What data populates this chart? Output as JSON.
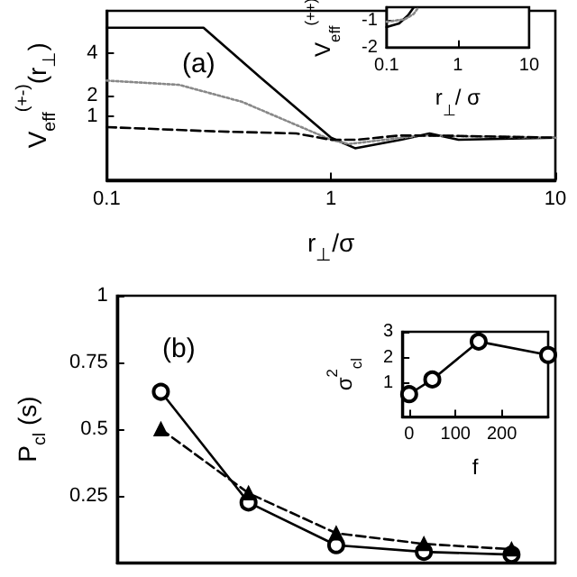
{
  "chart_data": [
    {
      "type": "line",
      "annotations": [
        "(a)"
      ],
      "xlabel": "r$_{⊥}$/σ",
      "ylabel": "V$_{eff}$$^{(+-)}$(r$_{⊥}$)",
      "log": "x",
      "xlim": [
        0.1,
        10
      ],
      "xticks": [
        0.1,
        1,
        10
      ],
      "ylim": [
        -2,
        6
      ],
      "yticks": [
        1,
        2,
        4
      ],
      "marker": "none",
      "series": [
        {
          "color": "#000000",
          "line_style": "solid",
          "x": [
            0.1,
            0.27,
            0.49,
            1,
            1.28,
            2.05,
            2.75,
            3.7,
            10
          ],
          "values": [
            5.2,
            5.2,
            2.8,
            0,
            -0.5,
            -0.1,
            0.2,
            -0.1,
            0
          ]
        },
        {
          "color": "#888888",
          "line_style": "dotted",
          "x": [
            0.1,
            0.21,
            0.4,
            0.7,
            1,
            1.2,
            2.5,
            10
          ],
          "values": [
            2.7,
            2.5,
            1.7,
            0.6,
            -0.1,
            -0.3,
            0.1,
            0
          ]
        },
        {
          "color": "#000000",
          "line_style": "dashed",
          "x": [
            0.1,
            0.3,
            0.7,
            1,
            1.3,
            2,
            3,
            10
          ],
          "values": [
            0.5,
            0.3,
            0.2,
            -0.1,
            -0.1,
            0.1,
            0.1,
            0
          ]
        }
      ]
    },
    {
      "type": "line",
      "xlabel": "r$_{⊥}$/ σ",
      "ylabel": "V$_{eff}$$^{(++)}$",
      "log": "x",
      "xlim": [
        0.1,
        10
      ],
      "xticks": [
        0.1,
        1,
        10
      ],
      "ylim": [
        -2,
        -0.5
      ],
      "yticks": [
        -2,
        -1
      ],
      "marker": "none",
      "series": [
        {
          "color": "#000000",
          "line_style": "solid",
          "x": [
            0.1,
            0.15,
            0.2,
            0.24
          ],
          "values": [
            -1.24,
            -1.1,
            -0.8,
            -0.51
          ]
        },
        {
          "color": "#888888",
          "line_style": "dotted",
          "x": [
            0.1,
            0.18,
            0.24,
            0.28
          ],
          "values": [
            -1.04,
            -0.95,
            -0.75,
            -0.51
          ]
        }
      ]
    },
    {
      "type": "line",
      "annotations": [
        "(b)"
      ],
      "ylabel": "P$_{cl}$ (s)",
      "categories": [
        null,
        null,
        null,
        null,
        null
      ],
      "ylim": [
        0,
        1
      ],
      "yticks": [
        0.25,
        0.5,
        0.75,
        1
      ],
      "tick_labels": "y",
      "series": [
        {
          "color": "#000000",
          "line_style": "solid",
          "marker": "circle",
          "values": [
            0.64,
            0.225,
            0.065,
            0.04,
            0.03
          ]
        },
        {
          "color": "#000000",
          "line_style": "dashed",
          "marker": "triangle",
          "values": [
            0.5,
            0.26,
            0.11,
            0.07,
            0.05
          ]
        }
      ]
    },
    {
      "type": "line",
      "xlabel": "f",
      "ylabel": "σ$^{2}$$_{cl}$",
      "xlim": [
        -15,
        300
      ],
      "xticks": [
        0,
        100,
        200
      ],
      "ylim": [
        -0.3,
        3
      ],
      "yticks": [
        1,
        2,
        3
      ],
      "marker": "circle",
      "series": [
        {
          "color": "#000000",
          "line_style": "solid",
          "x": [
            0,
            50,
            150,
            300
          ],
          "values": [
            0.58,
            1.15,
            2.62,
            2.1
          ]
        }
      ]
    }
  ]
}
